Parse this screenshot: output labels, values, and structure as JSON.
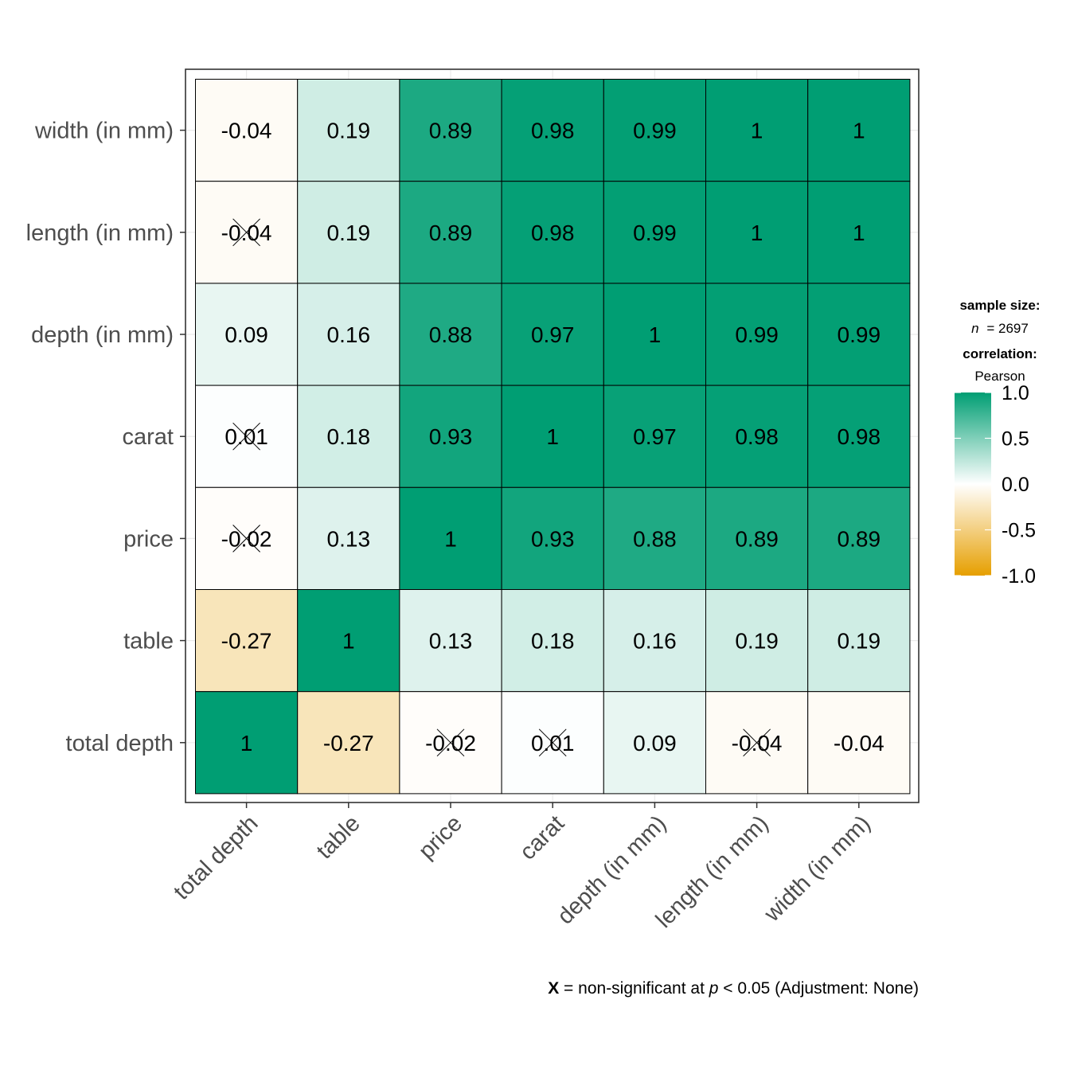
{
  "chart_data": {
    "type": "heatmap",
    "title": "",
    "xlabel": "",
    "ylabel": "",
    "x_categories": [
      "total depth",
      "table",
      "price",
      "carat",
      "depth (in mm)",
      "length (in mm)",
      "width (in mm)"
    ],
    "y_categories": [
      "total depth",
      "table",
      "price",
      "carat",
      "depth (in mm)",
      "length (in mm)",
      "width (in mm)"
    ],
    "cells": [
      {
        "x": "total depth",
        "y": "width (in mm)",
        "value": -0.04,
        "label": "-0.04",
        "nonsignificant": false
      },
      {
        "x": "table",
        "y": "width (in mm)",
        "value": 0.19,
        "label": "0.19",
        "nonsignificant": false
      },
      {
        "x": "price",
        "y": "width (in mm)",
        "value": 0.89,
        "label": "0.89",
        "nonsignificant": false
      },
      {
        "x": "carat",
        "y": "width (in mm)",
        "value": 0.98,
        "label": "0.98",
        "nonsignificant": false
      },
      {
        "x": "depth (in mm)",
        "y": "width (in mm)",
        "value": 0.99,
        "label": "0.99",
        "nonsignificant": false
      },
      {
        "x": "length (in mm)",
        "y": "width (in mm)",
        "value": 1,
        "label": "1",
        "nonsignificant": false
      },
      {
        "x": "width (in mm)",
        "y": "width (in mm)",
        "value": 1,
        "label": "1",
        "nonsignificant": false
      },
      {
        "x": "total depth",
        "y": "length (in mm)",
        "value": -0.04,
        "label": "-0.04",
        "nonsignificant": true
      },
      {
        "x": "table",
        "y": "length (in mm)",
        "value": 0.19,
        "label": "0.19",
        "nonsignificant": false
      },
      {
        "x": "price",
        "y": "length (in mm)",
        "value": 0.89,
        "label": "0.89",
        "nonsignificant": false
      },
      {
        "x": "carat",
        "y": "length (in mm)",
        "value": 0.98,
        "label": "0.98",
        "nonsignificant": false
      },
      {
        "x": "depth (in mm)",
        "y": "length (in mm)",
        "value": 0.99,
        "label": "0.99",
        "nonsignificant": false
      },
      {
        "x": "length (in mm)",
        "y": "length (in mm)",
        "value": 1,
        "label": "1",
        "nonsignificant": false
      },
      {
        "x": "width (in mm)",
        "y": "length (in mm)",
        "value": 1,
        "label": "1",
        "nonsignificant": false
      },
      {
        "x": "total depth",
        "y": "depth (in mm)",
        "value": 0.09,
        "label": "0.09",
        "nonsignificant": false
      },
      {
        "x": "table",
        "y": "depth (in mm)",
        "value": 0.16,
        "label": "0.16",
        "nonsignificant": false
      },
      {
        "x": "price",
        "y": "depth (in mm)",
        "value": 0.88,
        "label": "0.88",
        "nonsignificant": false
      },
      {
        "x": "carat",
        "y": "depth (in mm)",
        "value": 0.97,
        "label": "0.97",
        "nonsignificant": false
      },
      {
        "x": "depth (in mm)",
        "y": "depth (in mm)",
        "value": 1,
        "label": "1",
        "nonsignificant": false
      },
      {
        "x": "length (in mm)",
        "y": "depth (in mm)",
        "value": 0.99,
        "label": "0.99",
        "nonsignificant": false
      },
      {
        "x": "width (in mm)",
        "y": "depth (in mm)",
        "value": 0.99,
        "label": "0.99",
        "nonsignificant": false
      },
      {
        "x": "total depth",
        "y": "carat",
        "value": 0.01,
        "label": "0.01",
        "nonsignificant": true
      },
      {
        "x": "table",
        "y": "carat",
        "value": 0.18,
        "label": "0.18",
        "nonsignificant": false
      },
      {
        "x": "price",
        "y": "carat",
        "value": 0.93,
        "label": "0.93",
        "nonsignificant": false
      },
      {
        "x": "carat",
        "y": "carat",
        "value": 1,
        "label": "1",
        "nonsignificant": false
      },
      {
        "x": "depth (in mm)",
        "y": "carat",
        "value": 0.97,
        "label": "0.97",
        "nonsignificant": false
      },
      {
        "x": "length (in mm)",
        "y": "carat",
        "value": 0.98,
        "label": "0.98",
        "nonsignificant": false
      },
      {
        "x": "width (in mm)",
        "y": "carat",
        "value": 0.98,
        "label": "0.98",
        "nonsignificant": false
      },
      {
        "x": "total depth",
        "y": "price",
        "value": -0.02,
        "label": "-0.02",
        "nonsignificant": true
      },
      {
        "x": "table",
        "y": "price",
        "value": 0.13,
        "label": "0.13",
        "nonsignificant": false
      },
      {
        "x": "price",
        "y": "price",
        "value": 1,
        "label": "1",
        "nonsignificant": false
      },
      {
        "x": "carat",
        "y": "price",
        "value": 0.93,
        "label": "0.93",
        "nonsignificant": false
      },
      {
        "x": "depth (in mm)",
        "y": "price",
        "value": 0.88,
        "label": "0.88",
        "nonsignificant": false
      },
      {
        "x": "length (in mm)",
        "y": "price",
        "value": 0.89,
        "label": "0.89",
        "nonsignificant": false
      },
      {
        "x": "width (in mm)",
        "y": "price",
        "value": 0.89,
        "label": "0.89",
        "nonsignificant": false
      },
      {
        "x": "total depth",
        "y": "table",
        "value": -0.27,
        "label": "-0.27",
        "nonsignificant": false
      },
      {
        "x": "table",
        "y": "table",
        "value": 1,
        "label": "1",
        "nonsignificant": false
      },
      {
        "x": "price",
        "y": "table",
        "value": 0.13,
        "label": "0.13",
        "nonsignificant": false
      },
      {
        "x": "carat",
        "y": "table",
        "value": 0.18,
        "label": "0.18",
        "nonsignificant": false
      },
      {
        "x": "depth (in mm)",
        "y": "table",
        "value": 0.16,
        "label": "0.16",
        "nonsignificant": false
      },
      {
        "x": "length (in mm)",
        "y": "table",
        "value": 0.19,
        "label": "0.19",
        "nonsignificant": false
      },
      {
        "x": "width (in mm)",
        "y": "table",
        "value": 0.19,
        "label": "0.19",
        "nonsignificant": false
      },
      {
        "x": "total depth",
        "y": "total depth",
        "value": 1,
        "label": "1",
        "nonsignificant": false
      },
      {
        "x": "table",
        "y": "total depth",
        "value": -0.27,
        "label": "-0.27",
        "nonsignificant": false
      },
      {
        "x": "price",
        "y": "total depth",
        "value": -0.02,
        "label": "-0.02",
        "nonsignificant": true
      },
      {
        "x": "carat",
        "y": "total depth",
        "value": 0.01,
        "label": "0.01",
        "nonsignificant": true
      },
      {
        "x": "depth (in mm)",
        "y": "total depth",
        "value": 0.09,
        "label": "0.09",
        "nonsignificant": false
      },
      {
        "x": "length (in mm)",
        "y": "total depth",
        "value": -0.04,
        "label": "-0.04",
        "nonsignificant": true
      },
      {
        "x": "width (in mm)",
        "y": "total depth",
        "value": -0.04,
        "label": "-0.04",
        "nonsignificant": false
      }
    ],
    "color_scale": {
      "low": "#E69F00",
      "mid": "#FFFFFF",
      "high": "#009E73",
      "limits": [
        -1,
        1
      ],
      "ticks": [
        "1.0",
        "0.5",
        "0.0",
        "-0.5",
        "-1.0"
      ]
    },
    "legend": {
      "position": "right",
      "sample_size_title": "sample size:",
      "n_symbol": "n",
      "n_value": "= 2697",
      "correlation_title": "correlation:",
      "correlation_type": "Pearson"
    },
    "caption": {
      "mark": "X",
      "text1": " = non-significant at ",
      "p_symbol": "p",
      "text2": " < 0.05 (Adjustment: None)"
    },
    "grid": true
  }
}
